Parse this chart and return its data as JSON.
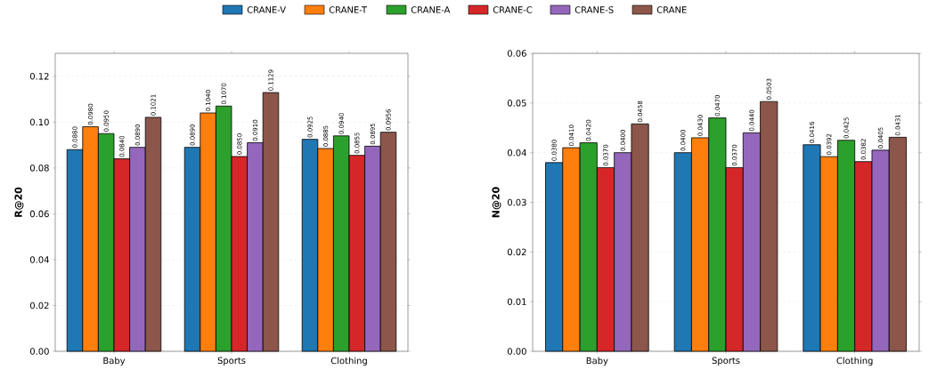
{
  "chart_data": [
    {
      "type": "bar",
      "ylabel": "R@20",
      "categories": [
        "Baby",
        "Sports",
        "Clothing"
      ],
      "ylim": [
        0,
        0.13
      ],
      "yticks": [
        {
          "value": 0,
          "label": "0.00"
        },
        {
          "value": 0.02,
          "label": "0.02"
        },
        {
          "value": 0.04,
          "label": "0.04"
        },
        {
          "value": 0.06,
          "label": "0.06"
        },
        {
          "value": 0.08,
          "label": "0.08"
        },
        {
          "value": 0.1,
          "label": "0.10"
        },
        {
          "value": 0.12,
          "label": "0.12"
        }
      ],
      "grid": "y",
      "legend": "top",
      "series": [
        {
          "name": "CRANE-V",
          "color": "#1f77b4",
          "values": [
            0.088,
            0.089,
            0.0925
          ],
          "value_labels": [
            "0.0880",
            "0.0890",
            "0.0925"
          ]
        },
        {
          "name": "CRANE-T",
          "color": "#ff7f0e",
          "values": [
            0.098,
            0.104,
            0.0885
          ],
          "value_labels": [
            "0.0980",
            "0.1040",
            "0.0885"
          ]
        },
        {
          "name": "CRANE-A",
          "color": "#2ca02c",
          "values": [
            0.095,
            0.107,
            0.094
          ],
          "value_labels": [
            "0.0950",
            "0.1070",
            "0.0940"
          ]
        },
        {
          "name": "CRANE-C",
          "color": "#d62728",
          "values": [
            0.084,
            0.085,
            0.0855
          ],
          "value_labels": [
            "0.0840",
            "0.0850",
            "0.0855"
          ]
        },
        {
          "name": "CRANE-S",
          "color": "#9467bd",
          "values": [
            0.089,
            0.091,
            0.0895
          ],
          "value_labels": [
            "0.0890",
            "0.0910",
            "0.0895"
          ]
        },
        {
          "name": "CRANE",
          "color": "#8c564b",
          "values": [
            0.1021,
            0.1129,
            0.0956
          ],
          "value_labels": [
            "0.1021",
            "0.1129",
            "0.0956"
          ]
        }
      ]
    },
    {
      "type": "bar",
      "ylabel": "N@20",
      "categories": [
        "Baby",
        "Sports",
        "Clothing"
      ],
      "ylim": [
        0,
        0.06
      ],
      "yticks": [
        {
          "value": 0,
          "label": "0.00"
        },
        {
          "value": 0.01,
          "label": "0.01"
        },
        {
          "value": 0.02,
          "label": "0.02"
        },
        {
          "value": 0.03,
          "label": "0.03"
        },
        {
          "value": 0.04,
          "label": "0.04"
        },
        {
          "value": 0.05,
          "label": "0.05"
        },
        {
          "value": 0.06,
          "label": "0.06"
        }
      ],
      "grid": "y",
      "series": [
        {
          "color": "#1f77b4",
          "values": [
            0.038,
            0.04,
            0.0416
          ],
          "value_labels": [
            "0.0380",
            "0.0400",
            "0.0416"
          ]
        },
        {
          "color": "#ff7f0e",
          "values": [
            0.041,
            0.043,
            0.0392
          ],
          "value_labels": [
            "0.0410",
            "0.0430",
            "0.0392"
          ]
        },
        {
          "color": "#2ca02c",
          "values": [
            0.042,
            0.047,
            0.0425
          ],
          "value_labels": [
            "0.0420",
            "0.0470",
            "0.0425"
          ]
        },
        {
          "color": "#d62728",
          "values": [
            0.037,
            0.037,
            0.0382
          ],
          "value_labels": [
            "0.0370",
            "0.0370",
            "0.0382"
          ]
        },
        {
          "color": "#9467bd",
          "values": [
            0.04,
            0.044,
            0.0405
          ],
          "value_labels": [
            "0.0400",
            "0.0440",
            "0.0405"
          ]
        },
        {
          "color": "#8c564b",
          "values": [
            0.0458,
            0.0503,
            0.0431
          ],
          "value_labels": [
            "0.0458",
            "0.0503",
            "0.0431"
          ]
        }
      ]
    }
  ]
}
